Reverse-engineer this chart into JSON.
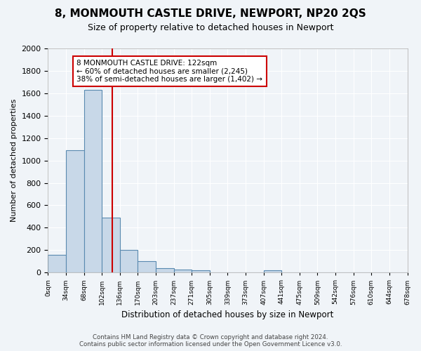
{
  "title": "8, MONMOUTH CASTLE DRIVE, NEWPORT, NP20 2QS",
  "subtitle": "Size of property relative to detached houses in Newport",
  "xlabel": "Distribution of detached houses by size in Newport",
  "ylabel": "Number of detached properties",
  "bin_labels": [
    "0sqm",
    "34sqm",
    "68sqm",
    "102sqm",
    "136sqm",
    "170sqm",
    "203sqm",
    "237sqm",
    "271sqm",
    "305sqm",
    "339sqm",
    "373sqm",
    "407sqm",
    "441sqm",
    "475sqm",
    "509sqm",
    "542sqm",
    "576sqm",
    "610sqm",
    "644sqm",
    "678sqm"
  ],
  "bar_heights": [
    160,
    1090,
    1630,
    490,
    200,
    105,
    40,
    25,
    20,
    0,
    0,
    0,
    20,
    0,
    0,
    0,
    0,
    0,
    0,
    0
  ],
  "bar_color": "#c8d8e8",
  "bar_edgecolor": "#5a8ab0",
  "annotation_text": "8 MONMOUTH CASTLE DRIVE: 122sqm\n← 60% of detached houses are smaller (2,245)\n38% of semi-detached houses are larger (1,402) →",
  "annotation_box_color": "#ffffff",
  "annotation_box_edgecolor": "#cc0000",
  "red_line_color": "#cc0000",
  "ylim": [
    0,
    2000
  ],
  "yticks": [
    0,
    200,
    400,
    600,
    800,
    1000,
    1200,
    1400,
    1600,
    1800,
    2000
  ],
  "footer_line1": "Contains HM Land Registry data © Crown copyright and database right 2024.",
  "footer_line2": "Contains public sector information licensed under the Open Government Licence v3.0.",
  "bg_color": "#f0f4f8",
  "grid_color": "#ffffff"
}
